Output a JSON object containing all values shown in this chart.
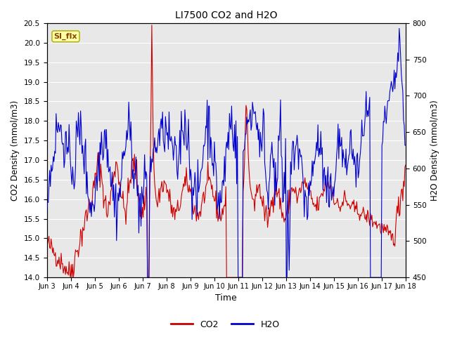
{
  "title": "LI7500 CO2 and H2O",
  "xlabel": "Time",
  "ylabel_left": "CO2 Density (mmol/m3)",
  "ylabel_right": "H2O Density (mmol/m3)",
  "co2_color": "#CC0000",
  "h2o_color": "#0000CC",
  "ylim_left": [
    14.0,
    20.5
  ],
  "ylim_right": [
    450,
    800
  ],
  "yticks_left": [
    14.0,
    14.5,
    15.0,
    15.5,
    16.0,
    16.5,
    17.0,
    17.5,
    18.0,
    18.5,
    19.0,
    19.5,
    20.0,
    20.5
  ],
  "yticks_right": [
    450,
    500,
    550,
    600,
    650,
    700,
    750,
    800
  ],
  "xtick_labels": [
    "Jun 3",
    "Jun 4",
    "Jun 5",
    "Jun 6",
    "Jun 7",
    "Jun 8",
    "Jun 9",
    "Jun 10",
    "Jun 11",
    "Jun 12",
    "Jun 13",
    "Jun 14",
    "Jun 15",
    "Jun 16",
    "Jun 17",
    "Jun 18"
  ],
  "legend_entries": [
    "CO2",
    "H2O"
  ],
  "annotation_text": "SI_flx",
  "background_color": "#ffffff",
  "plot_bg_color": "#e8e8e8",
  "grid_color": "#ffffff",
  "linewidth": 0.8
}
